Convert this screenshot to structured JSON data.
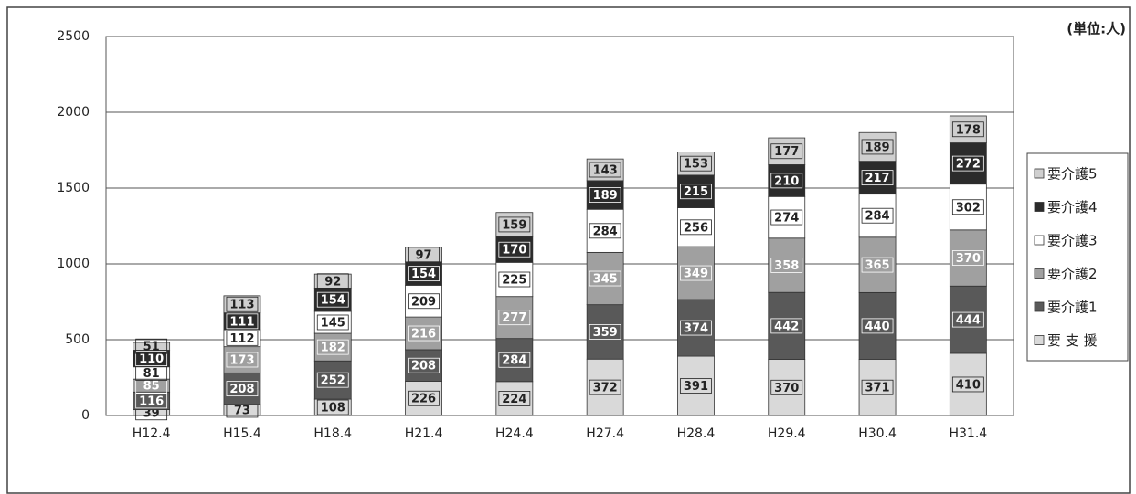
{
  "chart_data": {
    "type": "bar",
    "stacked": true,
    "unit_label": "(単位:人)",
    "categories": [
      "H12.4",
      "H15.4",
      "H18.4",
      "H21.4",
      "H24.4",
      "H27.4",
      "H28.4",
      "H29.4",
      "H30.4",
      "H31.4"
    ],
    "series": [
      {
        "name": "要 支 援",
        "color": "#d9d9d9",
        "label_color": "#222",
        "values": [
          39,
          73,
          108,
          226,
          224,
          372,
          391,
          370,
          371,
          410
        ]
      },
      {
        "name": "要介護1",
        "color": "#595959",
        "label_color": "#fff",
        "values": [
          116,
          208,
          252,
          208,
          284,
          359,
          374,
          442,
          440,
          444
        ]
      },
      {
        "name": "要介護2",
        "color": "#a0a0a0",
        "label_color": "#fff",
        "values": [
          85,
          173,
          182,
          216,
          277,
          345,
          349,
          358,
          365,
          370
        ]
      },
      {
        "name": "要介護3",
        "color": "#ffffff",
        "label_color": "#222",
        "values": [
          81,
          112,
          145,
          209,
          225,
          284,
          256,
          274,
          284,
          302
        ]
      },
      {
        "name": "要介護4",
        "color": "#2b2b2b",
        "label_color": "#fff",
        "values": [
          110,
          111,
          154,
          154,
          170,
          189,
          215,
          210,
          217,
          272
        ]
      },
      {
        "name": "要介護5",
        "color": "#cfcfcf",
        "label_color": "#222",
        "values": [
          51,
          113,
          92,
          97,
          159,
          143,
          153,
          177,
          189,
          178
        ]
      }
    ],
    "ylim": [
      0,
      2500
    ],
    "yticks": [
      0,
      500,
      1000,
      1500,
      2000,
      2500
    ],
    "grid": true
  }
}
